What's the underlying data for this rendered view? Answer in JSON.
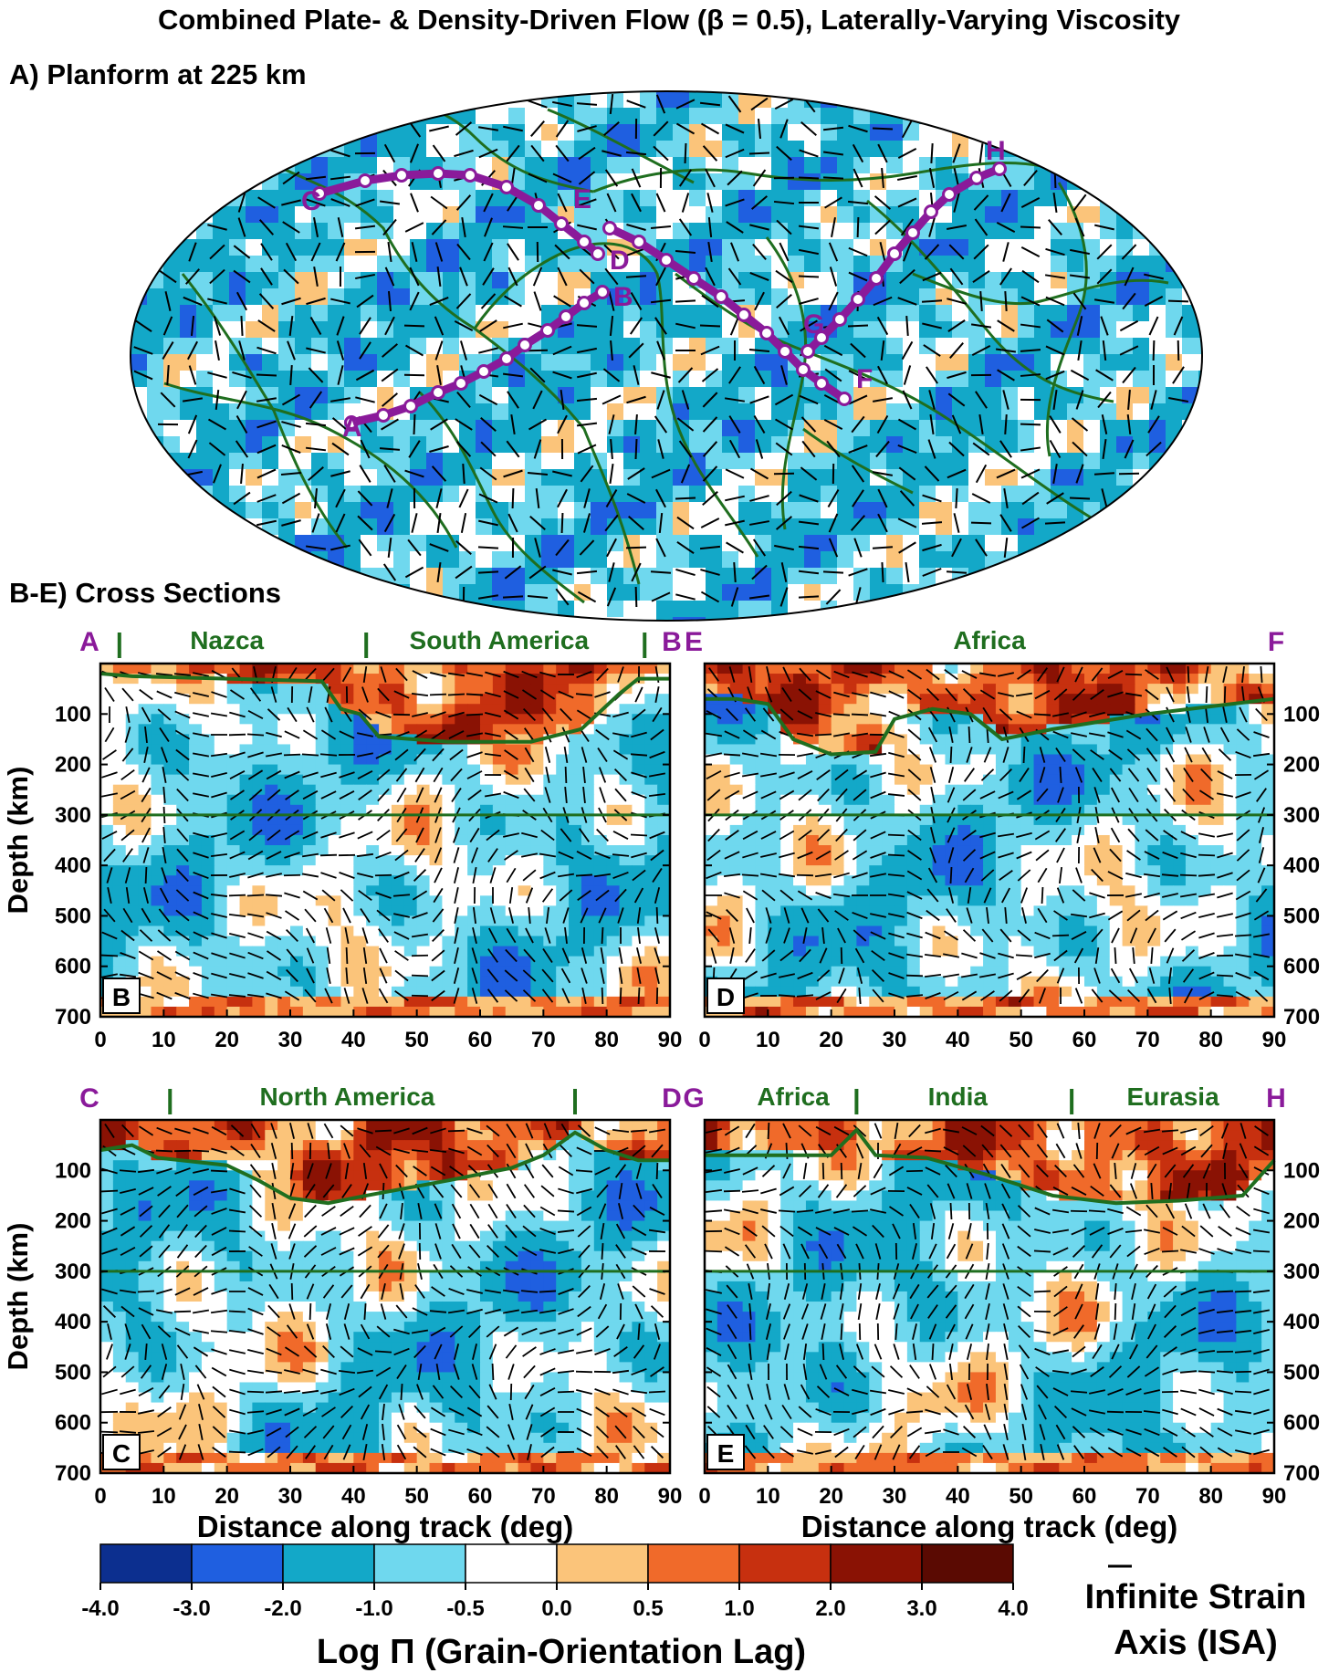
{
  "title": "Combined Plate- & Density-Driven Flow (β = 0.5), Laterally-Varying Viscosity",
  "panelA_title": "A) Planform at 225 km",
  "panelBE_title": "B-E) Cross Sections",
  "map": {
    "tracks": [
      {
        "start": "A",
        "end": "B"
      },
      {
        "start": "C",
        "end": "D"
      },
      {
        "start": "E",
        "end": "F"
      },
      {
        "start": "G",
        "end": "H"
      }
    ]
  },
  "chart_data": [
    {
      "type": "heatmap",
      "panel": "B",
      "track_start": "A",
      "track_end": "B",
      "plates": [
        {
          "name": "Nazca",
          "center_deg": 20
        },
        {
          "name": "South America",
          "center_deg": 63
        }
      ],
      "plate_boundaries_deg": [
        3,
        42,
        86
      ],
      "lab_depth_km": [
        [
          0,
          20
        ],
        [
          5,
          25
        ],
        [
          20,
          30
        ],
        [
          35,
          35
        ],
        [
          38,
          90
        ],
        [
          41,
          100
        ],
        [
          44,
          145
        ],
        [
          55,
          155
        ],
        [
          68,
          155
        ],
        [
          76,
          130
        ],
        [
          82,
          60
        ],
        [
          85,
          30
        ],
        [
          90,
          30
        ]
      ],
      "reference_depth_km": 300,
      "xlim": [
        0,
        90
      ],
      "ylim": [
        700,
        0
      ],
      "xticks": [
        "0",
        "10",
        "20",
        "30",
        "40",
        "50",
        "60",
        "70",
        "80",
        "90"
      ],
      "yticks": [
        "100",
        "200",
        "300",
        "400",
        "500",
        "600",
        "700"
      ],
      "ylabel": "Depth (km)",
      "xlabel": ""
    },
    {
      "type": "heatmap",
      "panel": "D",
      "track_start": "E",
      "track_end": "F",
      "plates": [
        {
          "name": "Africa",
          "center_deg": 45
        }
      ],
      "plate_boundaries_deg": [],
      "lab_depth_km": [
        [
          0,
          70
        ],
        [
          5,
          70
        ],
        [
          10,
          80
        ],
        [
          14,
          150
        ],
        [
          20,
          180
        ],
        [
          27,
          175
        ],
        [
          30,
          110
        ],
        [
          36,
          90
        ],
        [
          42,
          100
        ],
        [
          47,
          150
        ],
        [
          55,
          130
        ],
        [
          70,
          100
        ],
        [
          80,
          85
        ],
        [
          90,
          70
        ]
      ],
      "reference_depth_km": 300,
      "xlim": [
        0,
        90
      ],
      "ylim": [
        700,
        0
      ],
      "xticks": [
        "0",
        "10",
        "20",
        "30",
        "40",
        "50",
        "60",
        "70",
        "80",
        "90"
      ],
      "yticks": [
        "100",
        "200",
        "300",
        "400",
        "500",
        "600",
        "700"
      ],
      "ylabel": "",
      "xlabel": ""
    },
    {
      "type": "heatmap",
      "panel": "C",
      "track_start": "C",
      "track_end": "D",
      "plates": [
        {
          "name": "North America",
          "center_deg": 39
        }
      ],
      "plate_boundaries_deg": [
        11,
        75
      ],
      "lab_depth_km": [
        [
          0,
          60
        ],
        [
          5,
          50
        ],
        [
          9,
          75
        ],
        [
          20,
          90
        ],
        [
          25,
          120
        ],
        [
          30,
          155
        ],
        [
          36,
          165
        ],
        [
          42,
          150
        ],
        [
          55,
          120
        ],
        [
          65,
          95
        ],
        [
          70,
          70
        ],
        [
          75,
          25
        ],
        [
          80,
          60
        ],
        [
          85,
          80
        ],
        [
          90,
          80
        ]
      ],
      "reference_depth_km": 300,
      "xlim": [
        0,
        90
      ],
      "ylim": [
        700,
        0
      ],
      "xticks": [
        "0",
        "10",
        "20",
        "30",
        "40",
        "50",
        "60",
        "70",
        "80",
        "90"
      ],
      "yticks": [
        "100",
        "200",
        "300",
        "400",
        "500",
        "600",
        "700"
      ],
      "ylabel": "Depth (km)",
      "xlabel": "Distance along track (deg)"
    },
    {
      "type": "heatmap",
      "panel": "E",
      "track_start": "G",
      "track_end": "H",
      "plates": [
        {
          "name": "Africa",
          "center_deg": 14
        },
        {
          "name": "India",
          "center_deg": 40
        },
        {
          "name": "Eurasia",
          "center_deg": 74
        }
      ],
      "plate_boundaries_deg": [
        24,
        58
      ],
      "lab_depth_km": [
        [
          0,
          70
        ],
        [
          10,
          70
        ],
        [
          20,
          70
        ],
        [
          24,
          20
        ],
        [
          27,
          70
        ],
        [
          35,
          75
        ],
        [
          45,
          110
        ],
        [
          55,
          150
        ],
        [
          65,
          165
        ],
        [
          75,
          160
        ],
        [
          85,
          150
        ],
        [
          90,
          80
        ]
      ],
      "reference_depth_km": 300,
      "xlim": [
        0,
        90
      ],
      "ylim": [
        700,
        0
      ],
      "xticks": [
        "0",
        "10",
        "20",
        "30",
        "40",
        "50",
        "60",
        "70",
        "80",
        "90"
      ],
      "yticks": [
        "100",
        "200",
        "300",
        "400",
        "500",
        "600",
        "700"
      ],
      "ylabel": "",
      "xlabel": "Distance along track (deg)"
    }
  ],
  "colorbar": {
    "label": "Log Π (Grain-Orientation Lag)",
    "ticks": [
      "-4.0",
      "-3.0",
      "-2.0",
      "-1.0",
      "-0.5",
      "0.0",
      "0.5",
      "1.0",
      "2.0",
      "3.0",
      "4.0"
    ],
    "colors": [
      "#0c2f8f",
      "#1f5fe0",
      "#13a8c8",
      "#6fd8ee",
      "#ffffff",
      "#fbc47a",
      "#f06a2a",
      "#c7300f",
      "#8a1204",
      "#5a0a02"
    ]
  },
  "isa_legend": {
    "line1": "Infinite Strain",
    "line2": "Axis (ISA)"
  },
  "colors": {
    "plate_green": "#1f6e1f",
    "track_purple": "#8a1a9a"
  }
}
